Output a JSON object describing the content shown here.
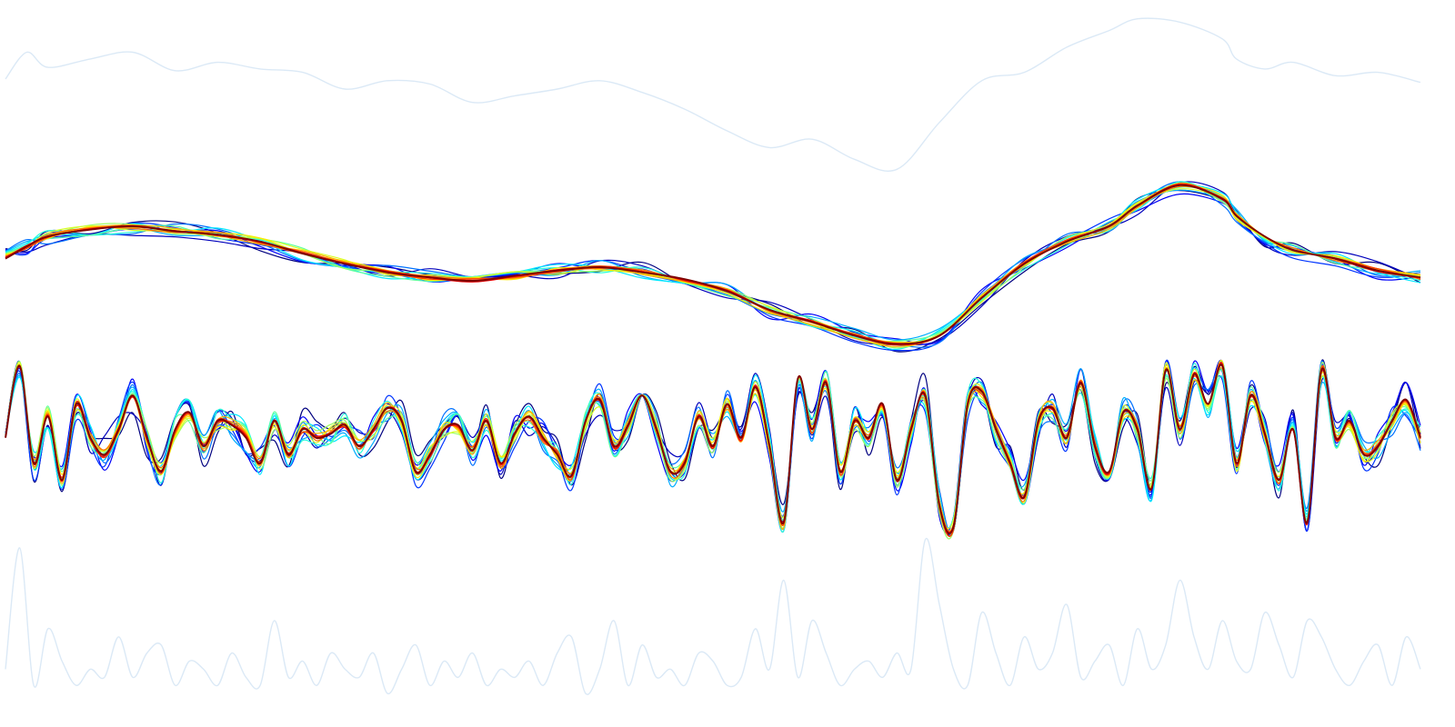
{
  "chart_data": {
    "type": "line",
    "title": "",
    "xlabel": "",
    "ylabel": "",
    "axes_visible": false,
    "grid": false,
    "legend": "none",
    "x_range": [
      0,
      1
    ],
    "colormap": "jet",
    "panels": [
      {
        "role": "raw-signal-background",
        "color": "#dbe9f6",
        "ylim": [
          0,
          1
        ],
        "x": [
          0,
          0.015,
          0.03,
          0.06,
          0.09,
          0.12,
          0.15,
          0.18,
          0.21,
          0.24,
          0.27,
          0.3,
          0.33,
          0.36,
          0.39,
          0.42,
          0.45,
          0.48,
          0.51,
          0.54,
          0.57,
          0.6,
          0.63,
          0.66,
          0.69,
          0.72,
          0.75,
          0.78,
          0.8,
          0.83,
          0.86,
          0.87,
          0.89,
          0.91,
          0.94,
          0.97,
          1
        ],
        "values": [
          0.56,
          0.72,
          0.63,
          0.68,
          0.72,
          0.61,
          0.66,
          0.62,
          0.6,
          0.5,
          0.55,
          0.53,
          0.42,
          0.46,
          0.5,
          0.55,
          0.48,
          0.38,
          0.25,
          0.15,
          0.2,
          0.08,
          0.02,
          0.3,
          0.55,
          0.6,
          0.75,
          0.85,
          0.92,
          0.9,
          0.8,
          0.68,
          0.62,
          0.66,
          0.58,
          0.6,
          0.54
        ]
      },
      {
        "role": "smoothed-trend-bundle",
        "n_lines": 18,
        "ylim": [
          0,
          1
        ],
        "x": [
          0,
          0.015,
          0.03,
          0.06,
          0.09,
          0.12,
          0.15,
          0.18,
          0.21,
          0.24,
          0.27,
          0.3,
          0.33,
          0.36,
          0.39,
          0.42,
          0.45,
          0.48,
          0.51,
          0.54,
          0.57,
          0.6,
          0.63,
          0.66,
          0.69,
          0.72,
          0.75,
          0.78,
          0.8,
          0.83,
          0.86,
          0.87,
          0.89,
          0.91,
          0.94,
          0.97,
          1
        ],
        "values": [
          0.55,
          0.62,
          0.68,
          0.72,
          0.74,
          0.71,
          0.69,
          0.65,
          0.58,
          0.52,
          0.47,
          0.44,
          0.42,
          0.45,
          0.48,
          0.5,
          0.47,
          0.43,
          0.36,
          0.25,
          0.18,
          0.1,
          0.05,
          0.1,
          0.32,
          0.52,
          0.65,
          0.74,
          0.86,
          0.98,
          0.9,
          0.8,
          0.68,
          0.6,
          0.55,
          0.48,
          0.44
        ]
      },
      {
        "role": "detail-bundle",
        "n_lines": 18,
        "ylim": [
          -1,
          1
        ],
        "x": [
          0,
          0.01,
          0.02,
          0.03,
          0.04,
          0.05,
          0.06,
          0.07,
          0.08,
          0.09,
          0.1,
          0.11,
          0.12,
          0.13,
          0.14,
          0.15,
          0.16,
          0.17,
          0.18,
          0.19,
          0.2,
          0.21,
          0.22,
          0.23,
          0.24,
          0.25,
          0.26,
          0.27,
          0.28,
          0.29,
          0.3,
          0.31,
          0.32,
          0.33,
          0.34,
          0.35,
          0.36,
          0.37,
          0.38,
          0.39,
          0.4,
          0.41,
          0.42,
          0.43,
          0.44,
          0.45,
          0.46,
          0.47,
          0.48,
          0.49,
          0.5,
          0.51,
          0.52,
          0.53,
          0.54,
          0.55,
          0.56,
          0.57,
          0.58,
          0.59,
          0.6,
          0.61,
          0.62,
          0.63,
          0.64,
          0.65,
          0.66,
          0.67,
          0.68,
          0.69,
          0.7,
          0.71,
          0.72,
          0.73,
          0.74,
          0.75,
          0.76,
          0.77,
          0.78,
          0.79,
          0.8,
          0.81,
          0.82,
          0.83,
          0.84,
          0.85,
          0.86,
          0.87,
          0.88,
          0.89,
          0.9,
          0.91,
          0.92,
          0.93,
          0.94,
          0.95,
          0.96,
          0.97,
          0.98,
          0.99,
          1
        ],
        "values": [
          0.1,
          0.95,
          -0.2,
          0.35,
          -0.4,
          0.5,
          0.1,
          -0.1,
          0.2,
          0.6,
          0.1,
          -0.3,
          0.2,
          0.4,
          0.0,
          0.3,
          0.25,
          0.1,
          -0.2,
          0.3,
          -0.1,
          0.2,
          0.1,
          0.15,
          0.25,
          0.0,
          0.2,
          0.45,
          0.3,
          -0.3,
          -0.1,
          0.2,
          0.25,
          -0.05,
          0.3,
          -0.2,
          0.15,
          0.35,
          0.1,
          -0.1,
          -0.35,
          0.3,
          0.55,
          0.0,
          0.25,
          0.6,
          0.2,
          -0.3,
          -0.2,
          0.35,
          0.0,
          0.5,
          0.1,
          0.7,
          0.0,
          -0.9,
          0.8,
          0.2,
          0.75,
          -0.3,
          0.3,
          0.1,
          0.5,
          -0.4,
          0.2,
          0.6,
          -0.7,
          -0.95,
          0.5,
          0.65,
          0.2,
          -0.2,
          -0.6,
          0.3,
          0.45,
          0.1,
          0.75,
          0.0,
          -0.3,
          0.4,
          0.2,
          -0.5,
          0.9,
          0.2,
          0.85,
          0.5,
          0.95,
          -0.2,
          0.6,
          0.15,
          -0.4,
          0.2,
          -0.9,
          0.9,
          0.1,
          0.3,
          -0.1,
          0.0,
          0.3,
          0.55,
          0.1
        ]
      },
      {
        "role": "envelope-background",
        "color": "#dbe9f6",
        "ylim": [
          0,
          1
        ],
        "x": [
          0,
          0.01,
          0.02,
          0.03,
          0.04,
          0.05,
          0.06,
          0.07,
          0.08,
          0.09,
          0.1,
          0.11,
          0.12,
          0.13,
          0.14,
          0.15,
          0.16,
          0.17,
          0.18,
          0.19,
          0.2,
          0.21,
          0.22,
          0.23,
          0.24,
          0.25,
          0.26,
          0.27,
          0.28,
          0.29,
          0.3,
          0.31,
          0.32,
          0.33,
          0.34,
          0.35,
          0.36,
          0.37,
          0.38,
          0.39,
          0.4,
          0.41,
          0.42,
          0.43,
          0.44,
          0.45,
          0.46,
          0.47,
          0.48,
          0.49,
          0.5,
          0.51,
          0.52,
          0.53,
          0.54,
          0.55,
          0.56,
          0.57,
          0.58,
          0.59,
          0.6,
          0.61,
          0.62,
          0.63,
          0.64,
          0.65,
          0.66,
          0.67,
          0.68,
          0.69,
          0.7,
          0.71,
          0.72,
          0.73,
          0.74,
          0.75,
          0.76,
          0.77,
          0.78,
          0.79,
          0.8,
          0.81,
          0.82,
          0.83,
          0.84,
          0.85,
          0.86,
          0.87,
          0.88,
          0.89,
          0.9,
          0.91,
          0.92,
          0.93,
          0.94,
          0.95,
          0.96,
          0.97,
          0.98,
          0.99,
          1
        ],
        "values": [
          0.2,
          0.95,
          0.1,
          0.45,
          0.25,
          0.1,
          0.2,
          0.15,
          0.4,
          0.15,
          0.3,
          0.35,
          0.1,
          0.25,
          0.2,
          0.1,
          0.3,
          0.15,
          0.1,
          0.5,
          0.15,
          0.25,
          0.1,
          0.3,
          0.2,
          0.15,
          0.3,
          0.05,
          0.2,
          0.35,
          0.1,
          0.25,
          0.15,
          0.3,
          0.1,
          0.2,
          0.15,
          0.25,
          0.1,
          0.3,
          0.4,
          0.05,
          0.2,
          0.5,
          0.1,
          0.35,
          0.15,
          0.2,
          0.1,
          0.3,
          0.25,
          0.1,
          0.15,
          0.45,
          0.2,
          0.75,
          0.15,
          0.5,
          0.3,
          0.1,
          0.2,
          0.25,
          0.15,
          0.3,
          0.2,
          1.0,
          0.6,
          0.2,
          0.1,
          0.55,
          0.3,
          0.1,
          0.4,
          0.2,
          0.3,
          0.6,
          0.15,
          0.25,
          0.35,
          0.1,
          0.45,
          0.2,
          0.35,
          0.75,
          0.4,
          0.2,
          0.5,
          0.25,
          0.2,
          0.55,
          0.35,
          0.15,
          0.5,
          0.4,
          0.2,
          0.1,
          0.25,
          0.35,
          0.1,
          0.4,
          0.2
        ]
      }
    ]
  }
}
